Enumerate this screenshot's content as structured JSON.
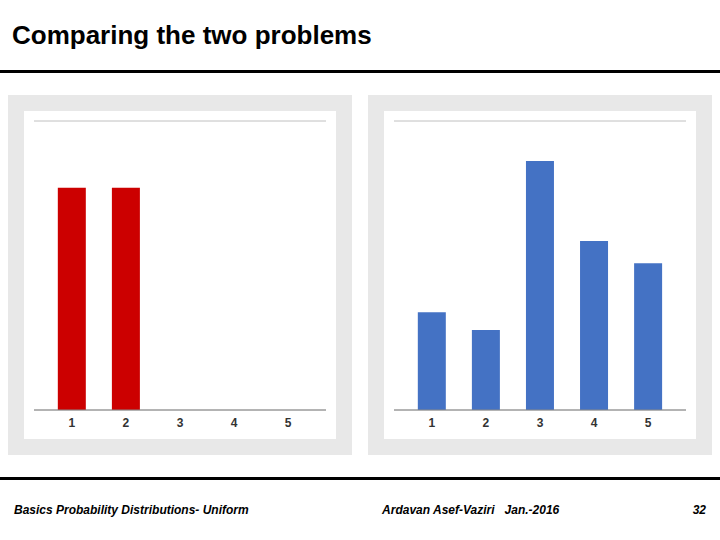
{
  "title": "Comparing the two problems",
  "annotations": [
    "Basics Probability Distributions- Uniform",
    "Ardavan Asef-Vaziri   Jan.-2016",
    "32"
  ],
  "chart_data": [
    {
      "type": "bar",
      "x": [
        1,
        2,
        3,
        4,
        5
      ],
      "values": [
        0.5,
        0.5,
        0,
        0,
        0
      ],
      "color": "#cc0000",
      "xlim": [
        0.3,
        5.7
      ],
      "xticks": [
        1,
        2,
        3,
        4,
        5
      ],
      "ylim": [
        0,
        0.65
      ],
      "yticks": [
        0,
        0.1,
        0.2,
        0.3,
        0.4,
        0.5,
        0.6
      ],
      "grid": true,
      "tick_labels": "x"
    },
    {
      "type": "bar",
      "x": [
        1,
        2,
        3,
        4,
        5
      ],
      "values": [
        0.22,
        0.18,
        0.56,
        0.38,
        0.33
      ],
      "color": "#4472c4",
      "xlim": [
        0.3,
        5.7
      ],
      "xticks": [
        1,
        2,
        3,
        4,
        5
      ],
      "ylim": [
        0,
        0.65
      ],
      "yticks": [
        0,
        0.1,
        0.2,
        0.3,
        0.4,
        0.5,
        0.6
      ],
      "grid": true,
      "tick_labels": "x"
    }
  ]
}
